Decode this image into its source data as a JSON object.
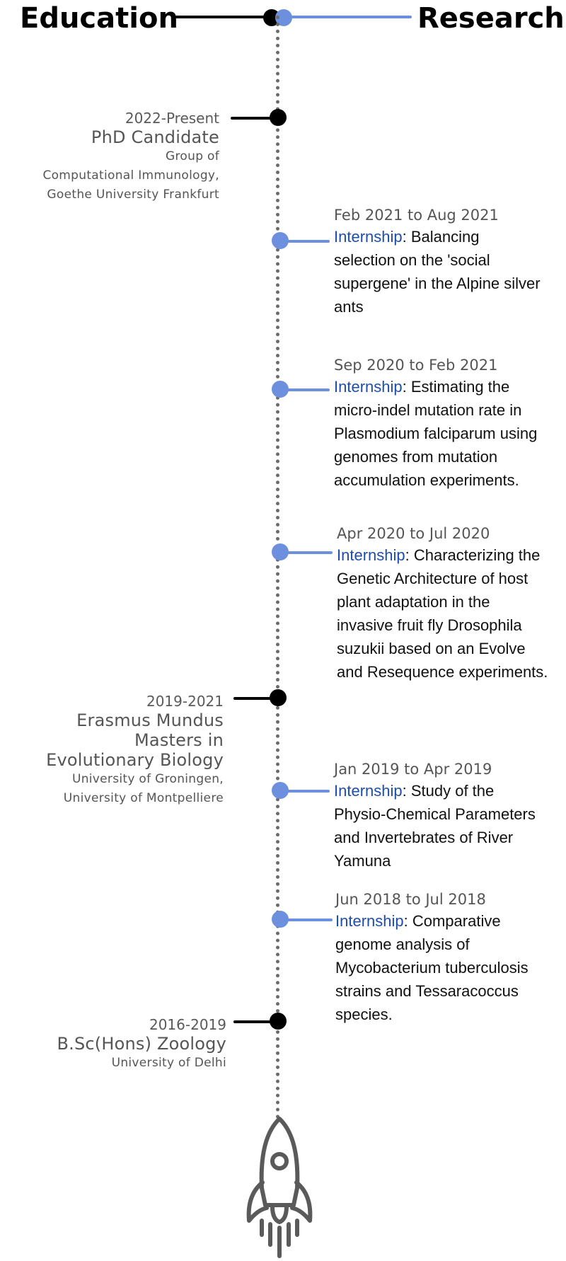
{
  "headers": {
    "education": "Education",
    "research": "Research"
  },
  "colors": {
    "education_accent": "#000000",
    "research_accent": "#6c8fde",
    "internship_label": "#1d4fa8",
    "spine": "#6b6b6b",
    "muted_text": "#555555"
  },
  "icons": {
    "rocket": "rocket-icon"
  },
  "education": [
    {
      "date": "2022-Present",
      "degree": "PhD Candidate",
      "institution": [
        "Group of",
        "Computational Immunology,",
        "Goethe University Frankfurt"
      ]
    },
    {
      "date": "2019-2021",
      "degree": [
        "Erasmus Mundus",
        "Masters in",
        "Evolutionary Biology"
      ],
      "institution": [
        "University of Groningen,",
        "University of Montpelliere"
      ]
    },
    {
      "date": "2016-2019",
      "degree": "B.Sc(Hons) Zoology",
      "institution": [
        "University of Delhi"
      ]
    }
  ],
  "research": [
    {
      "date": "Feb 2021 to Aug 2021",
      "kind": "Internship",
      "lines": [
        ": Balancing",
        "selection on the 'social",
        "supergene' in the Alpine silver",
        "ants"
      ]
    },
    {
      "date": "Sep 2020 to Feb 2021",
      "kind": "Internship",
      "lines": [
        ": Estimating the",
        "micro-indel mutation rate in",
        "Plasmodium falciparum using",
        "genomes from mutation",
        "accumulation experiments."
      ]
    },
    {
      "date": "Apr 2020 to Jul 2020",
      "kind": "Internship",
      "lines": [
        ": Characterizing the",
        "Genetic Architecture of host",
        "plant adaptation in the",
        "invasive fruit fly Drosophila",
        "suzukii based on an Evolve",
        "and Resequence experiments."
      ]
    },
    {
      "date": "Jan 2019 to Apr 2019",
      "kind": "Internship",
      "lines": [
        ": Study of the",
        "Physio-Chemical Parameters",
        "and Invertebrates of River",
        "Yamuna"
      ]
    },
    {
      "date": "Jun 2018 to Jul 2018",
      "kind": "Internship",
      "lines": [
        ": Comparative",
        "genome analysis of",
        "Mycobacterium tuberculosis",
        "strains and Tessaracoccus",
        "species."
      ]
    }
  ]
}
